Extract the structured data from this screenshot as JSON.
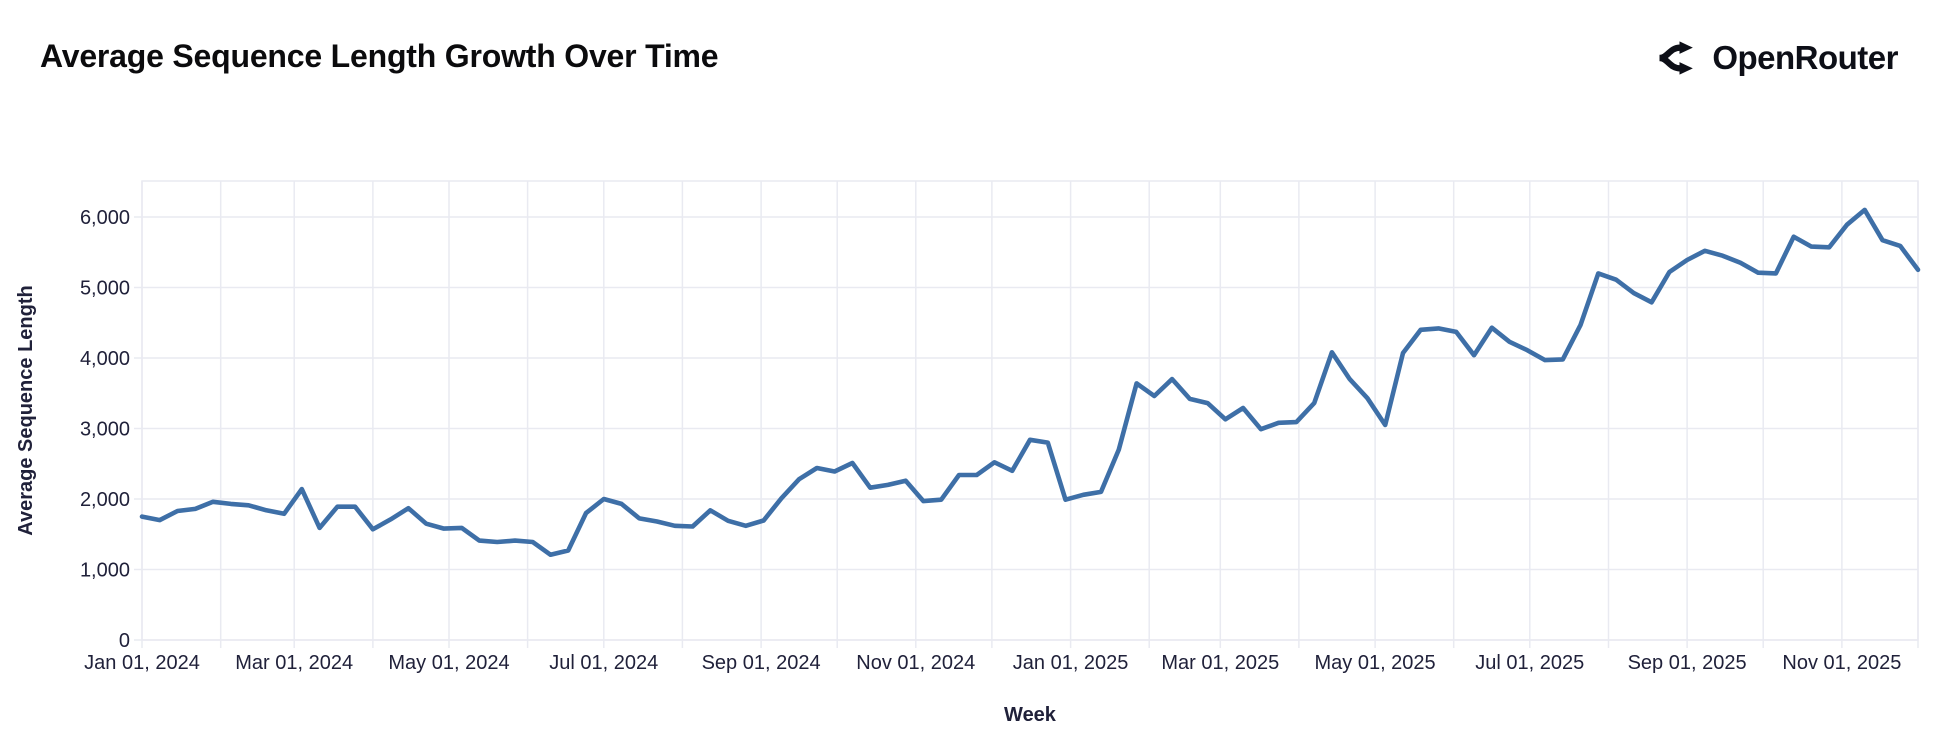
{
  "header": {
    "title": "Average Sequence Length Growth Over Time",
    "brand": "OpenRouter"
  },
  "chart_data": {
    "type": "line",
    "title": "Average Sequence Length Growth Over Time",
    "xlabel": "Week",
    "ylabel": "Average Sequence Length",
    "legend": "none",
    "grid": true,
    "line_color": "#3e6fa7",
    "grid_color": "#e9eaf1",
    "text_color": "#20213a",
    "ylim": [
      0,
      6510
    ],
    "y_ticks": [
      0,
      1000,
      2000,
      3000,
      4000,
      5000,
      6000
    ],
    "y_tick_labels": [
      "0",
      "1,000",
      "2,000",
      "3,000",
      "4,000",
      "5,000",
      "6,000"
    ],
    "x_axis_note": "weekly points, day offsets from Jan 01 2024",
    "x_step_days": 7,
    "xlim_days": [
      0,
      700
    ],
    "month_grid_days": [
      0,
      31,
      60,
      91,
      121,
      152,
      182,
      213,
      244,
      274,
      305,
      335,
      366,
      397,
      425,
      456,
      486,
      517,
      547,
      578,
      609,
      639,
      670,
      700
    ],
    "x_ticks": [
      {
        "day": 0,
        "label": "Jan 01, 2024"
      },
      {
        "day": 60,
        "label": "Mar 01, 2024"
      },
      {
        "day": 121,
        "label": "May 01, 2024"
      },
      {
        "day": 182,
        "label": "Jul 01, 2024"
      },
      {
        "day": 244,
        "label": "Sep 01, 2024"
      },
      {
        "day": 305,
        "label": "Nov 01, 2024"
      },
      {
        "day": 366,
        "label": "Jan 01, 2025"
      },
      {
        "day": 425,
        "label": "Mar 01, 2025"
      },
      {
        "day": 486,
        "label": "May 01, 2025"
      },
      {
        "day": 547,
        "label": "Jul 01, 2025"
      },
      {
        "day": 609,
        "label": "Sep 01, 2025"
      },
      {
        "day": 670,
        "label": "Nov 01, 2025"
      }
    ],
    "values": [
      1750,
      1700,
      1830,
      1860,
      1960,
      1930,
      1910,
      1840,
      1790,
      2140,
      1590,
      1890,
      1890,
      1570,
      1710,
      1870,
      1650,
      1580,
      1590,
      1410,
      1390,
      1410,
      1390,
      1210,
      1270,
      1800,
      2000,
      1930,
      1725,
      1680,
      1620,
      1610,
      1840,
      1690,
      1620,
      1695,
      2010,
      2280,
      2440,
      2390,
      2510,
      2160,
      2200,
      2260,
      1970,
      1990,
      2340,
      2340,
      2520,
      2400,
      2840,
      2800,
      1990,
      2060,
      2100,
      2700,
      3640,
      3460,
      3700,
      3420,
      3360,
      3130,
      3290,
      2990,
      3080,
      3090,
      3360,
      4080,
      3700,
      3430,
      3050,
      4070,
      4400,
      4420,
      4370,
      4040,
      4430,
      4230,
      4110,
      3970,
      3980,
      4470,
      5200,
      5110,
      4920,
      4790,
      5220,
      5390,
      5520,
      5450,
      5350,
      5210,
      5200,
      5720,
      5580,
      5570,
      5890,
      6100,
      5670,
      5590,
      5250
    ]
  }
}
